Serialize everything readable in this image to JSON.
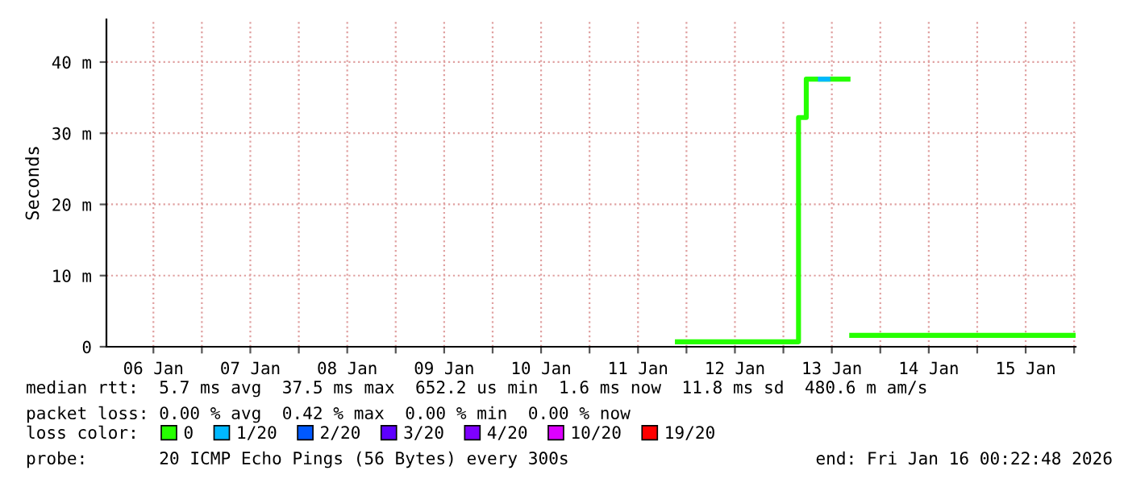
{
  "chart_data": {
    "type": "step",
    "ylabel": "Seconds",
    "xlim": [
      "2026-01-06T00:22",
      "2026-01-16T00:22"
    ],
    "xticks": [
      {
        "value": "2026-01-06T12:00",
        "label": "06 Jan"
      },
      {
        "value": "2026-01-07T12:00",
        "label": "07 Jan"
      },
      {
        "value": "2026-01-08T12:00",
        "label": "08 Jan"
      },
      {
        "value": "2026-01-09T12:00",
        "label": "09 Jan"
      },
      {
        "value": "2026-01-10T12:00",
        "label": "10 Jan"
      },
      {
        "value": "2026-01-11T12:00",
        "label": "11 Jan"
      },
      {
        "value": "2026-01-12T12:00",
        "label": "12 Jan"
      },
      {
        "value": "2026-01-13T12:00",
        "label": "13 Jan"
      },
      {
        "value": "2026-01-14T12:00",
        "label": "14 Jan"
      },
      {
        "value": "2026-01-15T12:00",
        "label": "15 Jan"
      },
      {
        "value": "2026-01-07T00:00",
        "label": null
      },
      {
        "value": "2026-01-08T00:00",
        "label": null
      },
      {
        "value": "2026-01-09T00:00",
        "label": null
      },
      {
        "value": "2026-01-10T00:00",
        "label": null
      },
      {
        "value": "2026-01-11T00:00",
        "label": null
      },
      {
        "value": "2026-01-12T00:00",
        "label": null
      },
      {
        "value": "2026-01-13T00:00",
        "label": null
      },
      {
        "value": "2026-01-14T00:00",
        "label": null
      },
      {
        "value": "2026-01-15T00:00",
        "label": null
      },
      {
        "value": "2026-01-16T00:00",
        "label": null
      }
    ],
    "ylim": [
      0,
      46
    ],
    "yticks": [
      0,
      {
        "value": 10,
        "label": "10 m"
      },
      {
        "value": 20,
        "label": "20 m"
      },
      {
        "value": 30,
        "label": "30 m"
      },
      {
        "value": 40,
        "label": "40 m"
      }
    ],
    "grid": true,
    "legend": "bottom",
    "legend_title": "loss color:",
    "series": [
      {
        "name": "0",
        "color": "#26ff00",
        "x": [
          "2026-01-11T21:45",
          "2026-01-13T03:45",
          "2026-01-13T05:40",
          "2026-01-13T15:45",
          "2026-01-13T16:00",
          "2026-01-13T16:55",
          "2026-01-16T00:20"
        ],
        "values": [
          0.7,
          32.2,
          37.6,
          37.6,
          null,
          1.6,
          1.6
        ]
      },
      {
        "name": "1/20",
        "color": "#00b8ff",
        "x": [
          "2026-01-13T09:10",
          "2026-01-13T11:00"
        ],
        "values": [
          37.6,
          37.6
        ]
      },
      {
        "name": "2/20",
        "color": "#0059ff"
      },
      {
        "name": "3/20",
        "color": "#5e00ff"
      },
      {
        "name": "4/20",
        "color": "#7e00ff"
      },
      {
        "name": "10/20",
        "color": "#dd00ff"
      },
      {
        "name": "19/20",
        "color": "#ff0000"
      }
    ],
    "annotations": [
      "median rtt:  5.7 ms avg  37.5 ms max  652.2 us min  1.6 ms now  11.8 ms sd  480.6 m am/s",
      "packet loss: 0.00 % avg  0.42 % max  0.00 % min  0.00 % now",
      "probe:       20 ICMP Echo Pings (56 Bytes) every 300s",
      "end: Fri Jan 16 00:22:48 2026"
    ]
  }
}
